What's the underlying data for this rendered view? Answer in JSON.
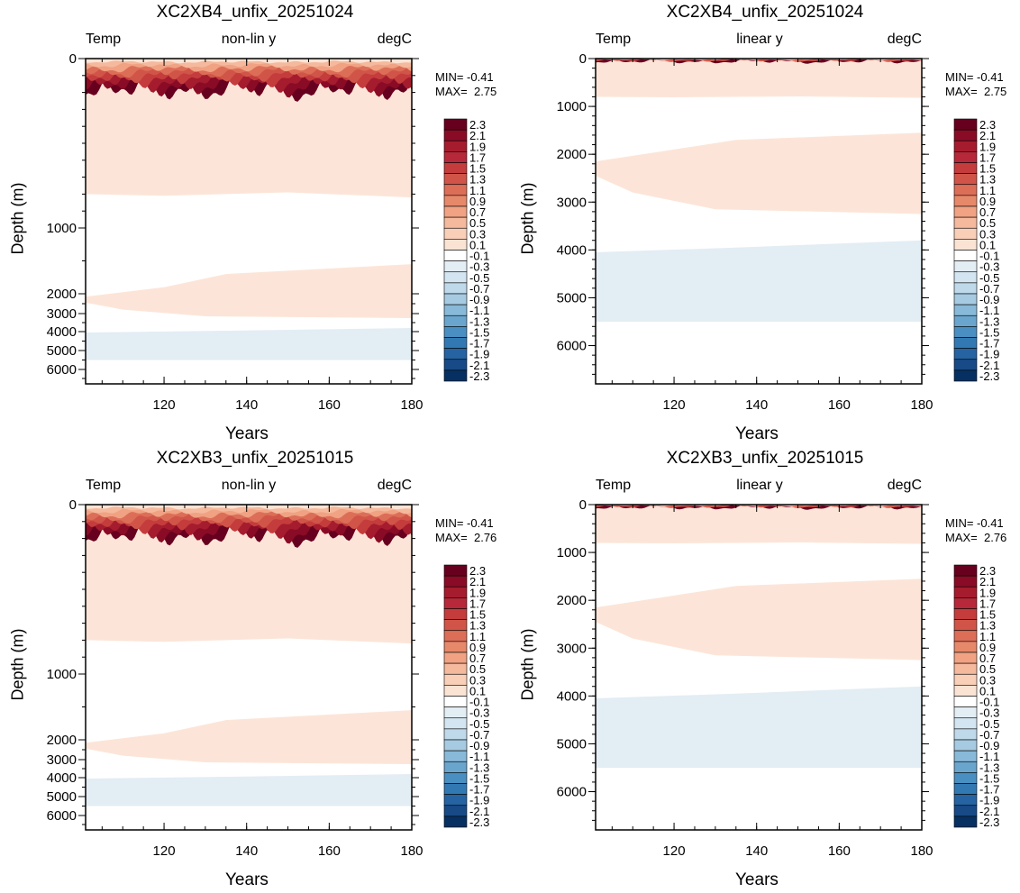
{
  "chart_data": [
    {
      "type": "heatmap",
      "title": "XC2XB4_unfix_20251024",
      "left_label": "Temp",
      "center_label": "non-lin y",
      "right_label": "degC",
      "min_text": "MIN= -0.41",
      "max_text": "MAX=  2.75",
      "xlabel": "Years",
      "ylabel": "Depth (m)",
      "xlim": [
        101,
        180
      ],
      "x_ticks": [
        "120",
        "140",
        "160",
        "180"
      ],
      "y_scale": "non-linear",
      "y_ticks": [
        "0",
        "1000",
        "2000",
        "3000",
        "4000",
        "5000",
        "6000"
      ],
      "colorbar_labels": [
        "2.3",
        "2.1",
        "1.9",
        "1.7",
        "1.5",
        "1.3",
        "1.1",
        "0.9",
        "0.7",
        "0.5",
        "0.3",
        "0.1",
        "-0.1",
        "-0.3",
        "-0.5",
        "-0.7",
        "-0.9",
        "-1.1",
        "-1.3",
        "-1.5",
        "-1.7",
        "-1.9",
        "-2.1",
        "-2.3"
      ]
    },
    {
      "type": "heatmap",
      "title": "XC2XB4_unfix_20251024",
      "left_label": "Temp",
      "center_label": "linear y",
      "right_label": "degC",
      "min_text": "MIN= -0.41",
      "max_text": "MAX=  2.75",
      "xlabel": "Years",
      "ylabel": "Depth (m)",
      "xlim": [
        101,
        180
      ],
      "x_ticks": [
        "120",
        "140",
        "160",
        "180"
      ],
      "y_scale": "linear",
      "y_ticks": [
        "0",
        "1000",
        "2000",
        "3000",
        "4000",
        "5000",
        "6000"
      ],
      "colorbar_labels": [
        "2.3",
        "2.1",
        "1.9",
        "1.7",
        "1.5",
        "1.3",
        "1.1",
        "0.9",
        "0.7",
        "0.5",
        "0.3",
        "0.1",
        "-0.1",
        "-0.3",
        "-0.5",
        "-0.7",
        "-0.9",
        "-1.1",
        "-1.3",
        "-1.5",
        "-1.7",
        "-1.9",
        "-2.1",
        "-2.3"
      ]
    },
    {
      "type": "heatmap",
      "title": "XC2XB3_unfix_20251015",
      "left_label": "Temp",
      "center_label": "non-lin y",
      "right_label": "degC",
      "min_text": "MIN= -0.41",
      "max_text": "MAX=  2.76",
      "xlabel": "Years",
      "ylabel": "Depth (m)",
      "xlim": [
        101,
        180
      ],
      "x_ticks": [
        "120",
        "140",
        "160",
        "180"
      ],
      "y_scale": "non-linear",
      "y_ticks": [
        "0",
        "1000",
        "2000",
        "3000",
        "4000",
        "5000",
        "6000"
      ],
      "colorbar_labels": [
        "2.3",
        "2.1",
        "1.9",
        "1.7",
        "1.5",
        "1.3",
        "1.1",
        "0.9",
        "0.7",
        "0.5",
        "0.3",
        "0.1",
        "-0.1",
        "-0.3",
        "-0.5",
        "-0.7",
        "-0.9",
        "-1.1",
        "-1.3",
        "-1.5",
        "-1.7",
        "-1.9",
        "-2.1",
        "-2.3"
      ]
    },
    {
      "type": "heatmap",
      "title": "XC2XB3_unfix_20251015",
      "left_label": "Temp",
      "center_label": "linear y",
      "right_label": "degC",
      "min_text": "MIN= -0.41",
      "max_text": "MAX=  2.76",
      "xlabel": "Years",
      "ylabel": "Depth (m)",
      "xlim": [
        101,
        180
      ],
      "x_ticks": [
        "120",
        "140",
        "160",
        "180"
      ],
      "y_scale": "linear",
      "y_ticks": [
        "0",
        "1000",
        "2000",
        "3000",
        "4000",
        "5000",
        "6000"
      ],
      "colorbar_labels": [
        "2.3",
        "2.1",
        "1.9",
        "1.7",
        "1.5",
        "1.3",
        "1.1",
        "0.9",
        "0.7",
        "0.5",
        "0.3",
        "0.1",
        "-0.1",
        "-0.3",
        "-0.5",
        "-0.7",
        "-0.9",
        "-1.1",
        "-1.3",
        "-1.5",
        "-1.7",
        "-1.9",
        "-2.1",
        "-2.3"
      ]
    }
  ],
  "colors": {
    "colorbar": [
      "#67001f",
      "#8a0b25",
      "#a51c2e",
      "#b6283a",
      "#c43c3c",
      "#d05548",
      "#dc6e57",
      "#e6886a",
      "#f0a283",
      "#f5b99d",
      "#f9cfb8",
      "#fbe3d4",
      "#ffffff",
      "#e3edf4",
      "#d3e5f0",
      "#bfd9ea",
      "#a6cae2",
      "#88b9d8",
      "#6aa5cd",
      "#4a8fc1",
      "#3279b3",
      "#2563a2",
      "#174a86",
      "#053061"
    ],
    "pale_warm": "#fce5d8",
    "pale_blue": "#e3edf4"
  }
}
